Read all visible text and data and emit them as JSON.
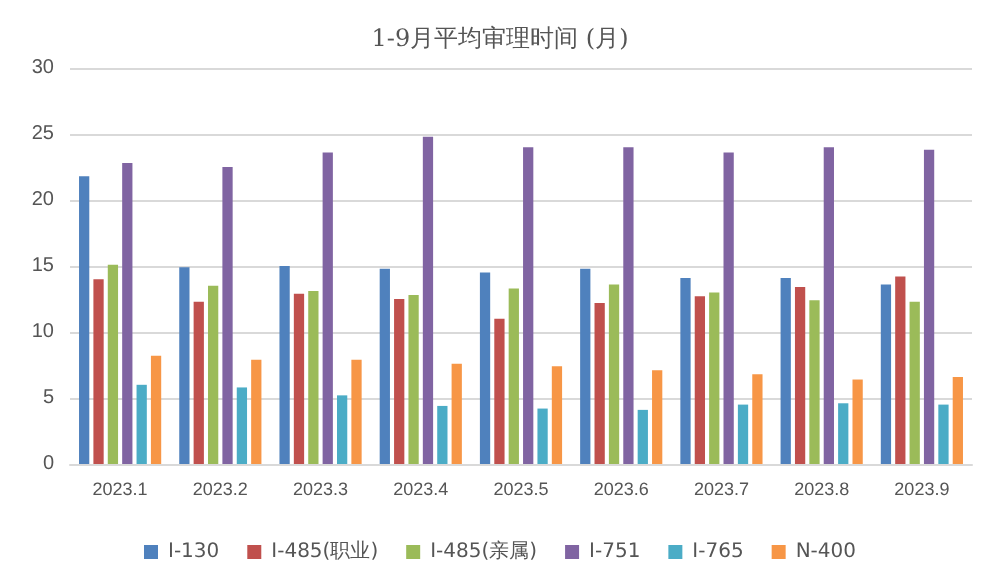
{
  "chart_data": {
    "type": "bar",
    "title": "1-9月平均审理时间 (月)",
    "categories": [
      "2023.1",
      "2023.2",
      "2023.3",
      "2023.4",
      "2023.5",
      "2023.6",
      "2023.7",
      "2023.8",
      "2023.9"
    ],
    "series": [
      {
        "name": "I-130",
        "color": "#4f81bd",
        "values": [
          21.8,
          14.9,
          15.0,
          14.8,
          14.5,
          14.8,
          14.1,
          14.1,
          13.6
        ]
      },
      {
        "name": "I-485(职业)",
        "color": "#c0504d",
        "values": [
          14.0,
          12.3,
          12.9,
          12.5,
          11.0,
          12.2,
          12.7,
          13.4,
          14.2
        ]
      },
      {
        "name": "I-485(亲属)",
        "color": "#9bbb59",
        "values": [
          15.1,
          13.5,
          13.1,
          12.8,
          13.3,
          13.6,
          13.0,
          12.4,
          12.3
        ]
      },
      {
        "name": "I-751",
        "color": "#8064a2",
        "values": [
          22.8,
          22.5,
          23.6,
          24.8,
          24.0,
          24.0,
          23.6,
          24.0,
          23.8
        ]
      },
      {
        "name": "I-765",
        "color": "#4bacc6",
        "values": [
          6.0,
          5.8,
          5.2,
          4.4,
          4.2,
          4.1,
          4.5,
          4.6,
          4.5
        ]
      },
      {
        "name": "N-400",
        "color": "#f79646",
        "values": [
          8.2,
          7.9,
          7.9,
          7.6,
          7.4,
          7.1,
          6.8,
          6.4,
          6.6
        ]
      }
    ],
    "ylim": [
      0,
      30
    ],
    "yticks": [
      0,
      5,
      10,
      15,
      20,
      25,
      30
    ],
    "grid": "y",
    "legend": "bottom"
  }
}
